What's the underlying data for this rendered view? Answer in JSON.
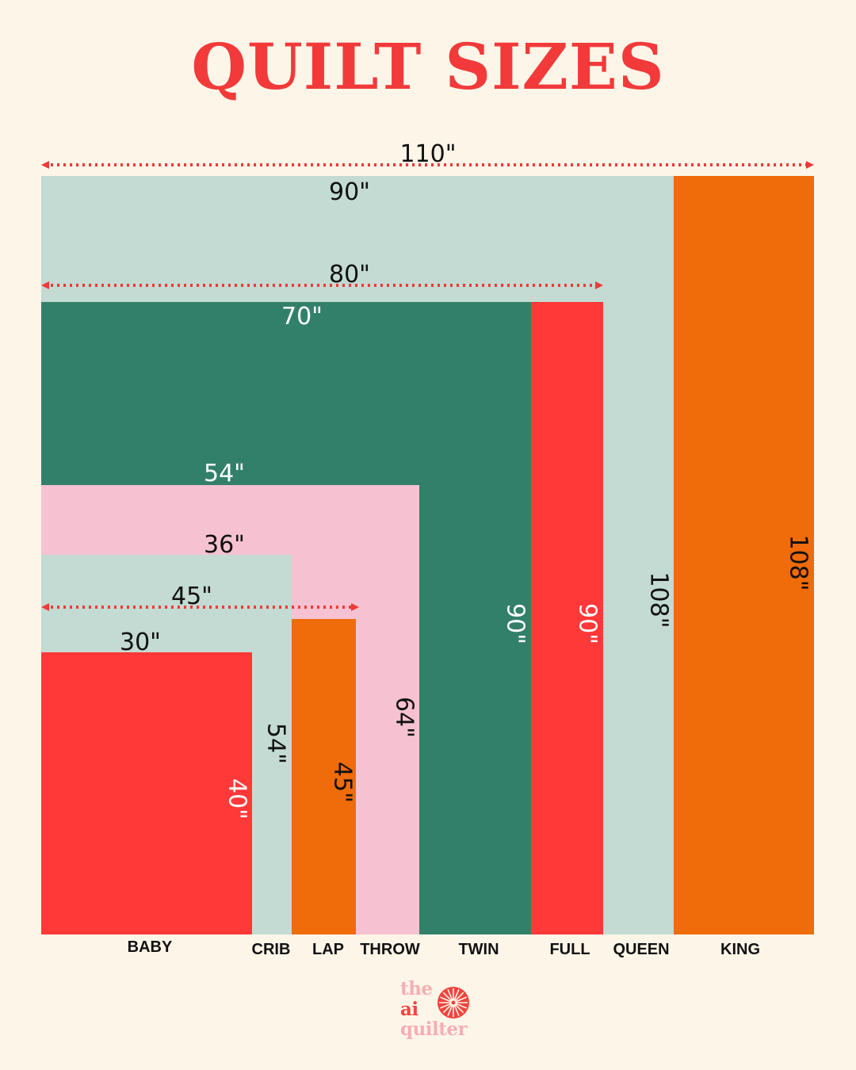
{
  "title": "QUILT SIZES",
  "colors": {
    "background": "#fdf6e8",
    "title": "#f23a3a",
    "red": "#ff3838",
    "mint": "#c3dbd2",
    "orange": "#f06b09",
    "pink": "#f6c2d1",
    "green": "#33806a",
    "arrow": "#ee3a3a",
    "logo_pink": "#f7aeb5",
    "logo_red": "#f3433f"
  },
  "quilts": [
    {
      "name": "KING",
      "width": "110\"",
      "length": "108\"",
      "fill": "mint_orange"
    },
    {
      "name": "QUEEN",
      "width": "90\"",
      "length": "108\""
    },
    {
      "name": "FULL",
      "width": "80\"",
      "length": "90\""
    },
    {
      "name": "TWIN",
      "width": "70\"",
      "length": "90\""
    },
    {
      "name": "THROW",
      "width": "54\"",
      "length": "64\""
    },
    {
      "name": "LAP",
      "width": "45\"",
      "length": "45\""
    },
    {
      "name": "CRIB",
      "width": "36\"",
      "length": "54\""
    },
    {
      "name": "BABY",
      "width": "30\"",
      "length": "40\""
    }
  ],
  "labels": {
    "baby": "BABY",
    "crib": "CRIB",
    "lap": "LAP",
    "throw": "THROW",
    "twin": "TWIN",
    "full": "FULL",
    "queen": "QUEEN",
    "king": "KING"
  },
  "dims": {
    "king_w": "110\"",
    "queen_w": "90\"",
    "full_w": "80\"",
    "twin_w": "70\"",
    "throw_w": "54\"",
    "crib_w": "36\"",
    "lap_w": "45\"",
    "baby_w": "30\"",
    "baby_h": "40\"",
    "crib_h": "54\"",
    "lap_h": "45\"",
    "throw_h": "64\"",
    "twin_h": "90\"",
    "full_h": "90\"",
    "queen_h": "108\"",
    "king_h": "108\""
  },
  "logo": {
    "line1": "the",
    "line2": "ai",
    "line3": "quilter"
  }
}
